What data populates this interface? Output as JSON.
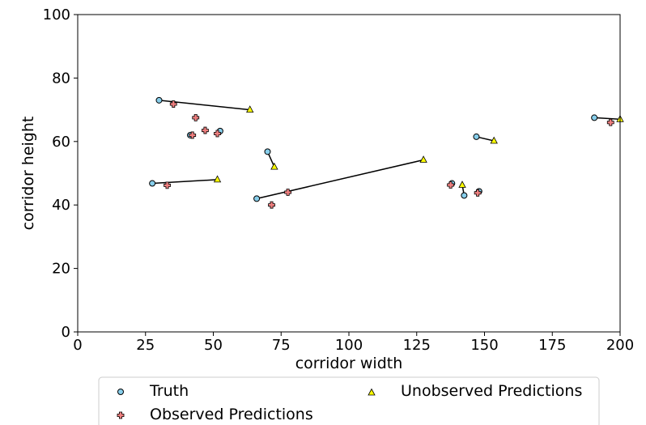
{
  "chart_data": {
    "type": "scatter",
    "xlabel": "corridor width",
    "ylabel": "corridor height",
    "xlim": [
      0,
      200
    ],
    "ylim": [
      0,
      100
    ],
    "xticks": [
      0,
      25,
      50,
      75,
      100,
      125,
      150,
      175,
      200
    ],
    "yticks": [
      0,
      20,
      40,
      60,
      80,
      100
    ],
    "grid": false,
    "legend": {
      "placement": "below",
      "entries": [
        "Truth",
        "Observed Predictions",
        "Unobserved Predictions"
      ]
    },
    "colors": {
      "truth": "#87CEEB",
      "observed": "#F08080",
      "unobserved": "#FFFF00",
      "edge": "#000000",
      "line": "#000000"
    },
    "series": [
      {
        "name": "Truth",
        "marker": "circle",
        "points": [
          [
            30,
            73
          ],
          [
            41.5,
            62
          ],
          [
            52.5,
            63.3
          ],
          [
            27.5,
            46.8
          ],
          [
            70,
            56.8
          ],
          [
            66,
            42
          ],
          [
            138,
            46.8
          ],
          [
            142.5,
            43
          ],
          [
            148,
            44.3
          ],
          [
            147,
            61.5
          ],
          [
            190.5,
            67.5
          ]
        ]
      },
      {
        "name": "Observed Predictions",
        "marker": "plus",
        "points": [
          [
            35.3,
            71.8
          ],
          [
            43.5,
            67.5
          ],
          [
            47,
            63.5
          ],
          [
            42.3,
            62
          ],
          [
            51.5,
            62.5
          ],
          [
            33,
            46.2
          ],
          [
            71.5,
            40
          ],
          [
            77.5,
            44
          ],
          [
            137.5,
            46.3
          ],
          [
            147.5,
            43.8
          ],
          [
            196.5,
            66
          ]
        ]
      },
      {
        "name": "Unobserved Predictions",
        "marker": "triangle",
        "points": [
          [
            63.5,
            70
          ],
          [
            51.5,
            48
          ],
          [
            72.5,
            52
          ],
          [
            127.5,
            54.2
          ],
          [
            141.8,
            46.3
          ],
          [
            153.5,
            60.2
          ],
          [
            200,
            67
          ]
        ]
      }
    ],
    "links": [
      [
        [
          30,
          73
        ],
        [
          63.5,
          70
        ]
      ],
      [
        [
          27.5,
          46.8
        ],
        [
          51.5,
          48
        ]
      ],
      [
        [
          70,
          56.8
        ],
        [
          72.5,
          52
        ]
      ],
      [
        [
          66,
          42
        ],
        [
          127.5,
          54.2
        ]
      ],
      [
        [
          142.5,
          43
        ],
        [
          141.8,
          46.3
        ]
      ],
      [
        [
          147,
          61.5
        ],
        [
          153.5,
          60.2
        ]
      ],
      [
        [
          190.5,
          67.5
        ],
        [
          200,
          67
        ]
      ]
    ]
  }
}
